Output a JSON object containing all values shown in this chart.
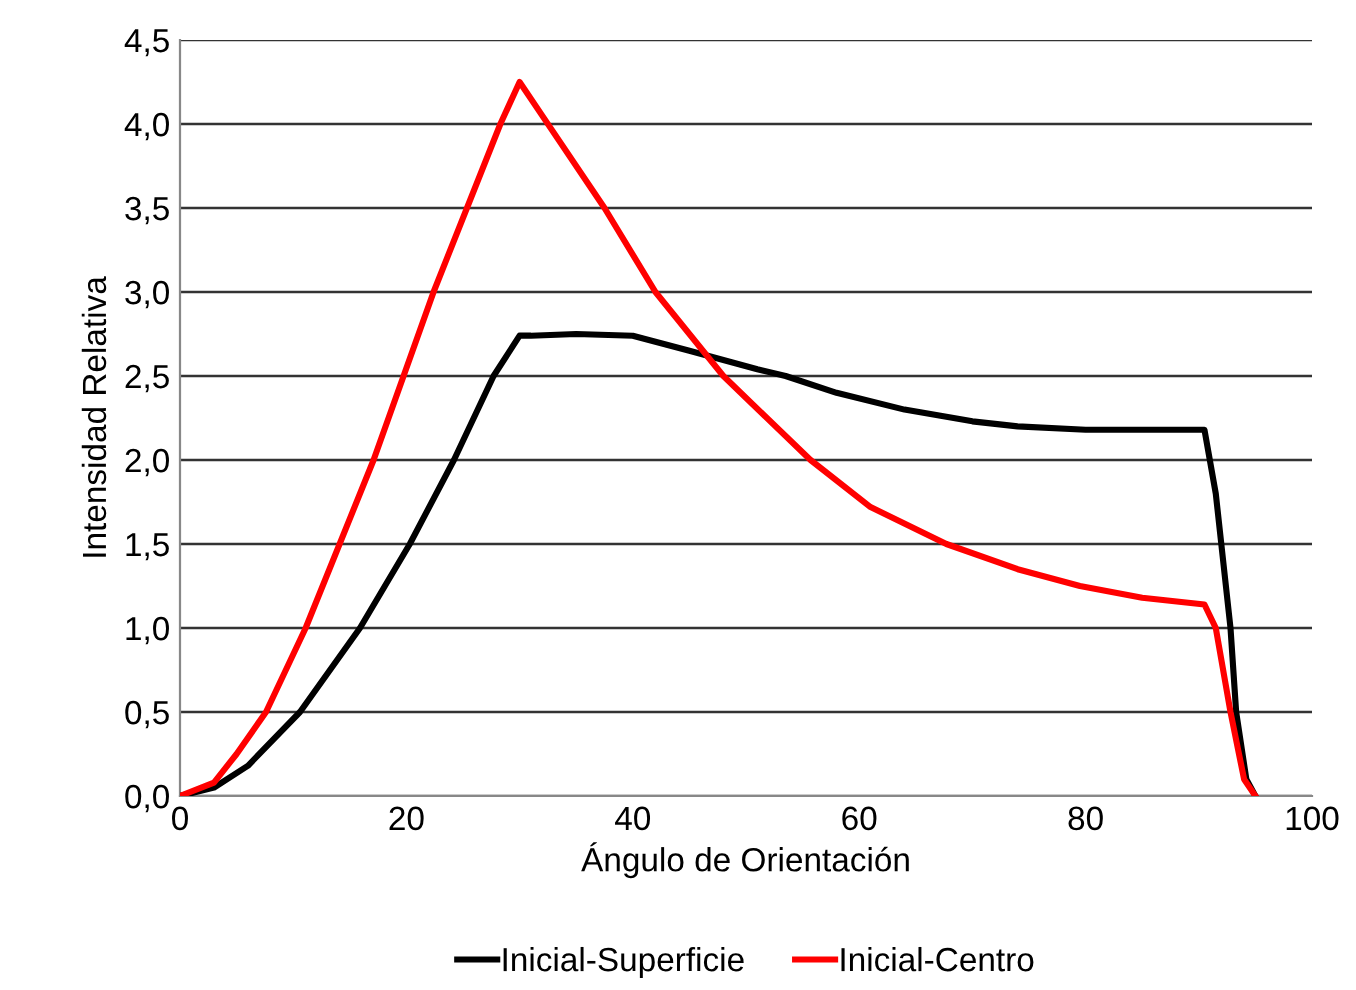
{
  "chart_data": {
    "type": "line",
    "xlabel": "Ángulo de Orientación",
    "ylabel": "Intensidad Relativa",
    "xlim": [
      0,
      100
    ],
    "xticks": [
      0,
      20,
      40,
      60,
      80,
      100
    ],
    "ylim": [
      0,
      4.5
    ],
    "yticks": [
      {
        "value": 0,
        "label": "0,0"
      },
      {
        "value": 0.5,
        "label": "0,5"
      },
      {
        "value": 1,
        "label": "1,0"
      },
      {
        "value": 1.5,
        "label": "1,5"
      },
      {
        "value": 2,
        "label": "2,0"
      },
      {
        "value": 2.5,
        "label": "2,5"
      },
      {
        "value": 3,
        "label": "3,0"
      },
      {
        "value": 3.5,
        "label": "3,5"
      },
      {
        "value": 4,
        "label": "4,0"
      },
      {
        "value": 4.5,
        "label": "4,5"
      }
    ],
    "grid": "y",
    "legend": "bottom",
    "marker": "none",
    "line_style": "solid",
    "series": [
      {
        "name": "Inicial-Superficie",
        "color": "#000000",
        "x": [
          0,
          3,
          6,
          10.6,
          15.9,
          20.3,
          24.2,
          27.7,
          30,
          31,
          35,
          40,
          45,
          51,
          53.5,
          58,
          64,
          70,
          74,
          80,
          86,
          90.5,
          91.5,
          92.8,
          93.3,
          94.2,
          95
        ],
        "values": [
          0,
          0.05,
          0.18,
          0.5,
          1.0,
          1.5,
          2.0,
          2.5,
          2.74,
          2.74,
          2.75,
          2.74,
          2.65,
          2.54,
          2.5,
          2.4,
          2.3,
          2.23,
          2.2,
          2.18,
          2.18,
          2.18,
          1.8,
          1.0,
          0.5,
          0.1,
          0
        ]
      },
      {
        "name": "Inicial-Centro",
        "color": "#ff0000",
        "x": [
          0,
          3,
          5,
          7.6,
          11.1,
          17.1,
          22.4,
          28.3,
          30,
          32,
          37.5,
          42,
          48,
          55.7,
          61,
          67.7,
          74,
          79.5,
          85,
          90.5,
          91.5,
          92.8,
          94,
          95
        ],
        "values": [
          0,
          0.08,
          0.25,
          0.5,
          1.0,
          2.0,
          3.0,
          4.0,
          4.25,
          4.05,
          3.5,
          3.0,
          2.5,
          2.0,
          1.72,
          1.5,
          1.35,
          1.25,
          1.18,
          1.14,
          1.0,
          0.5,
          0.1,
          0
        ]
      }
    ]
  }
}
